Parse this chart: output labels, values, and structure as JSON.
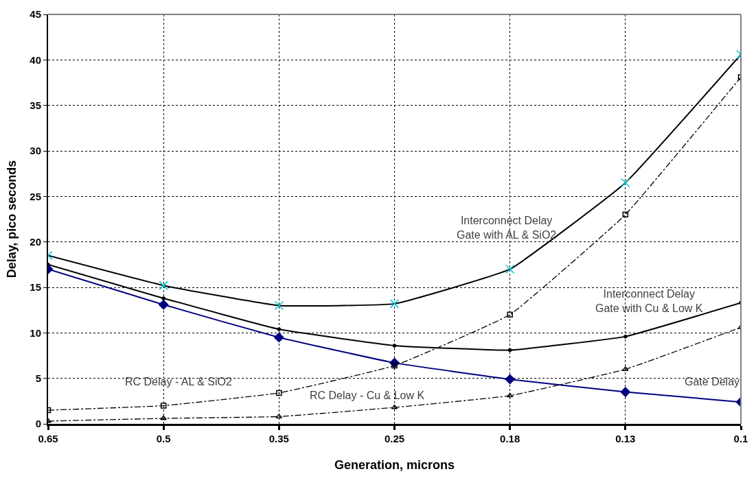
{
  "chart_data": {
    "type": "line",
    "xlabel": "Generation, microns",
    "ylabel": "Delay, pico seconds",
    "categories": [
      "0.65",
      "0.5",
      "0.35",
      "0.25",
      "0.18",
      "0.13",
      "0.1"
    ],
    "series": [
      {
        "name": "Interconnect Delay\nGate with AL & SiO2",
        "color": "#000000",
        "colors": [
          "#00c8d2",
          "#00c8d2",
          "#00c8d2",
          "#00c8d2",
          "#00c8d2",
          "#00c8d2",
          "#00c8d2"
        ],
        "marker": "cross",
        "line_style": "solid",
        "values": [
          18.5,
          15.2,
          13,
          13.2,
          17,
          26.5,
          40.6
        ]
      },
      {
        "name": "Interconnect Delay\nGate with Cu & Low K",
        "color": "#000000",
        "marker": "circle",
        "line_style": "solid",
        "values": [
          17.5,
          13.8,
          10.4,
          8.6,
          8.1,
          9.6,
          13.3
        ]
      },
      {
        "name": "Gate Delay",
        "color": "#000080",
        "marker": "diamond",
        "line_style": "solid",
        "values": [
          17,
          13.1,
          9.5,
          6.7,
          4.9,
          3.5,
          2.4
        ]
      },
      {
        "name": "RC Delay - AL & SiO2",
        "color": "#000000",
        "marker": "square",
        "line_style": "dashdot",
        "values": [
          1.5,
          2,
          3.4,
          6.4,
          12,
          23,
          38.1
        ]
      },
      {
        "name": "RC Delay - Cu & Low K",
        "color": "#000000",
        "marker": "triangle",
        "line_style": "dashdot",
        "values": [
          0.3,
          0.6,
          0.8,
          1.8,
          3.1,
          6,
          10.6
        ]
      }
    ],
    "ylim": [
      0,
      45
    ],
    "yticks": [
      0,
      5,
      10,
      15,
      20,
      25,
      30,
      35,
      40,
      45
    ],
    "grid": true,
    "legend": false
  }
}
